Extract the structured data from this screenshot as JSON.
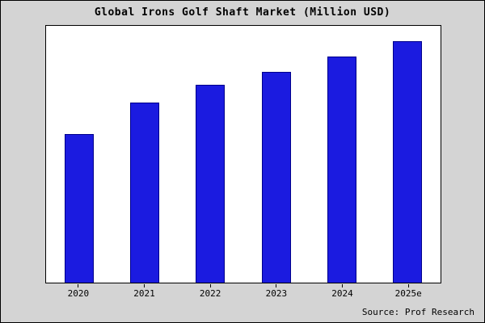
{
  "title": "Global Irons Golf Shaft Market (Million USD)",
  "source": "Source: Prof Research",
  "chart_data": {
    "type": "bar",
    "title": "Global Irons Golf Shaft Market (Million USD)",
    "categories": [
      "2020",
      "2021",
      "2022",
      "2023",
      "2024",
      "2025e"
    ],
    "values": [
      58,
      70,
      77,
      82,
      88,
      94
    ],
    "xlabel": "",
    "ylabel": "",
    "ylim": [
      0,
      100
    ],
    "grid": false,
    "legend_position": "none",
    "annotations": [
      "Source: Prof Research"
    ],
    "colors": {
      "bar_fill": "#1b1be0",
      "bar_edge": "#00008b",
      "plot_background": "#ffffff",
      "figure_background": "#d4d4d4",
      "frame_border": "#000000"
    }
  }
}
